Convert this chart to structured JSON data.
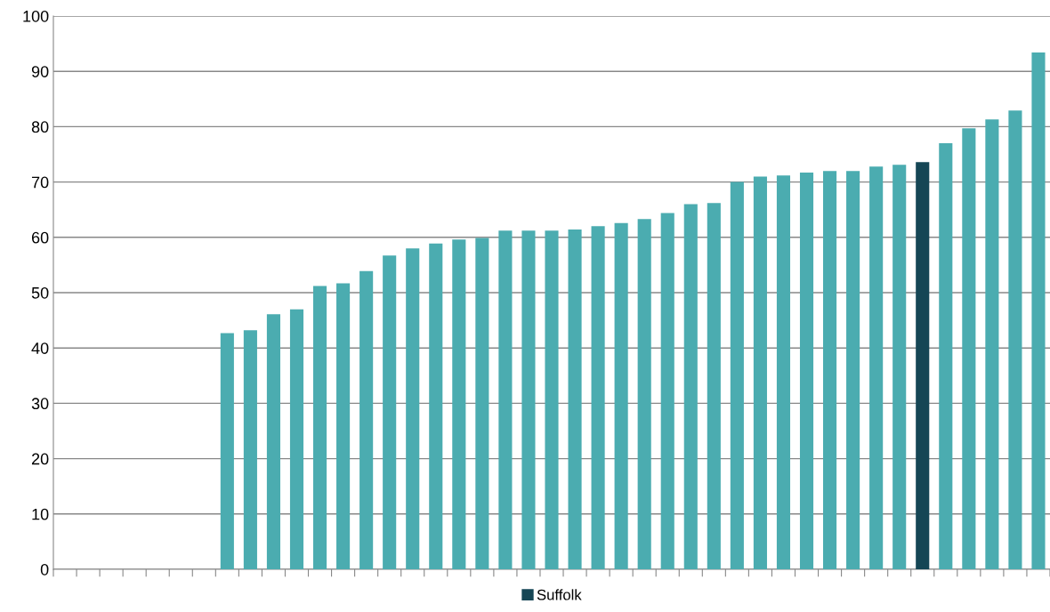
{
  "chart_data": {
    "type": "bar",
    "categories": [
      null,
      null,
      null,
      null,
      null,
      null,
      null,
      null,
      null,
      null,
      null,
      null,
      null,
      null,
      null,
      null,
      null,
      null,
      null,
      null,
      null,
      null,
      null,
      null,
      null,
      null,
      null,
      null,
      null,
      null,
      null,
      null,
      null,
      null,
      null,
      null,
      null,
      null,
      null,
      null,
      null,
      null,
      null
    ],
    "series": [
      {
        "color": "#4bacb0",
        "values": [
          null,
          null,
          null,
          null,
          null,
          null,
          null,
          42.7,
          43.2,
          46.1,
          47.0,
          51.2,
          51.7,
          53.9,
          56.7,
          58.0,
          58.9,
          59.6,
          59.9,
          61.2,
          61.2,
          61.2,
          61.4,
          62.0,
          62.6,
          63.3,
          64.4,
          66.0,
          66.2,
          70.0,
          71.0,
          71.2,
          71.7,
          72.0,
          72.0,
          72.8,
          73.1,
          null,
          77.0,
          79.7,
          81.3,
          82.9,
          93.4
        ]
      },
      {
        "name": "Suffolk",
        "color": "#154655",
        "values": [
          null,
          null,
          null,
          null,
          null,
          null,
          null,
          null,
          null,
          null,
          null,
          null,
          null,
          null,
          null,
          null,
          null,
          null,
          null,
          null,
          null,
          null,
          null,
          null,
          null,
          null,
          null,
          null,
          null,
          null,
          null,
          null,
          null,
          null,
          null,
          null,
          null,
          73.6,
          null,
          null,
          null,
          null,
          null
        ]
      }
    ],
    "ylim": [
      0,
      100
    ],
    "yticks": [
      0,
      10,
      20,
      30,
      40,
      50,
      60,
      70,
      80,
      90,
      100
    ],
    "grid": "y",
    "legend": "bottom",
    "tick_labels": "y"
  }
}
